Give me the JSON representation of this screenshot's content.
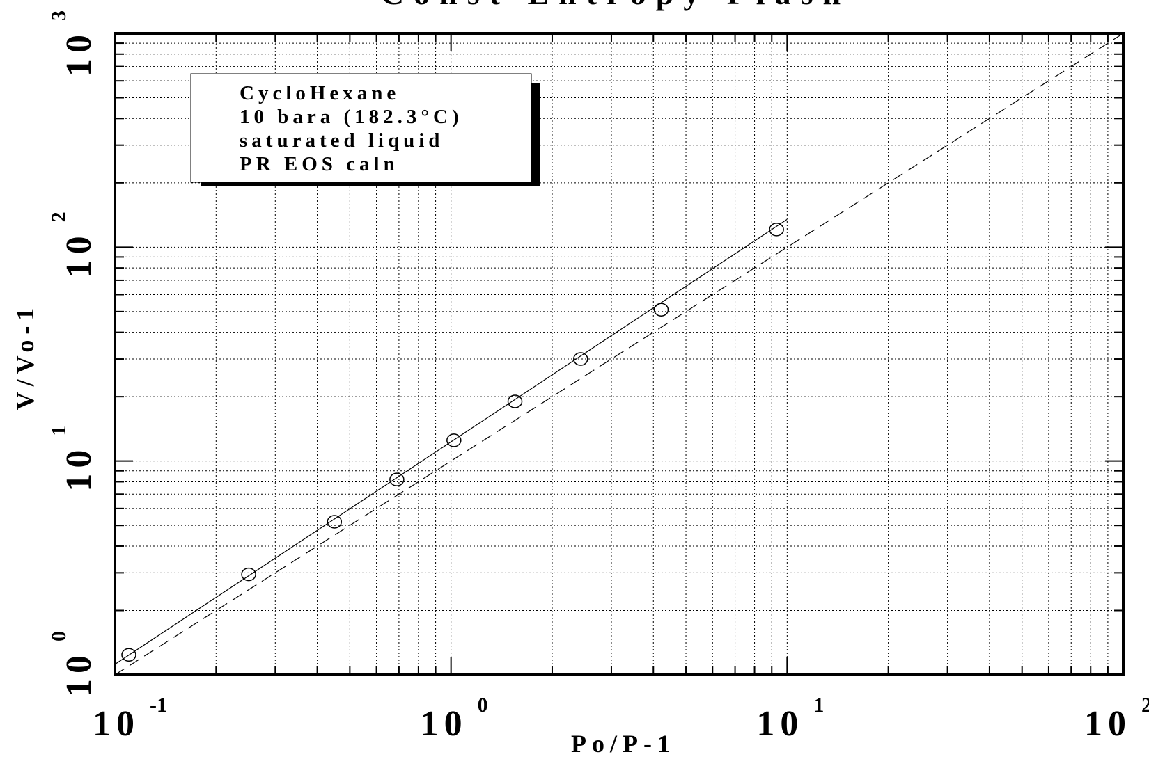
{
  "chart_data": {
    "type": "scatter",
    "title": "Const Entropy Flash",
    "xlabel": "Po/P-1",
    "ylabel": "V/Vo-1",
    "xscale": "log",
    "yscale": "log",
    "xlim": [
      0.1,
      100
    ],
    "ylim": [
      1,
      1000
    ],
    "grid": true,
    "x_ticks": [
      {
        "base": "10",
        "exp": "-1"
      },
      {
        "base": "10",
        "exp": "0"
      },
      {
        "base": "10",
        "exp": "1"
      },
      {
        "base": "10",
        "exp": "2"
      }
    ],
    "y_ticks": [
      {
        "base": "10",
        "exp": "0"
      },
      {
        "base": "10",
        "exp": "1"
      },
      {
        "base": "10",
        "exp": "2"
      },
      {
        "base": "10",
        "exp": "3"
      }
    ],
    "annotation": {
      "lines": [
        "CycloHexane",
        "10 bara (182.3°C)",
        "saturated liquid",
        "PR EOS caln"
      ],
      "placement": "top-left"
    },
    "series": [
      {
        "style": "open-circle markers",
        "x": [
          0.11,
          0.25,
          0.45,
          0.69,
          1.02,
          1.55,
          2.43,
          4.22,
          9.3
        ],
        "y": [
          1.24,
          2.95,
          5.2,
          8.2,
          12.5,
          19.0,
          30.0,
          51.0,
          121.0
        ]
      },
      {
        "style": "solid fit line",
        "x": [
          0.1,
          10
        ],
        "y": [
          1.12,
          135
        ]
      },
      {
        "style": "dashed line",
        "x": [
          0.1,
          100
        ],
        "y": [
          1,
          1000
        ]
      }
    ]
  }
}
